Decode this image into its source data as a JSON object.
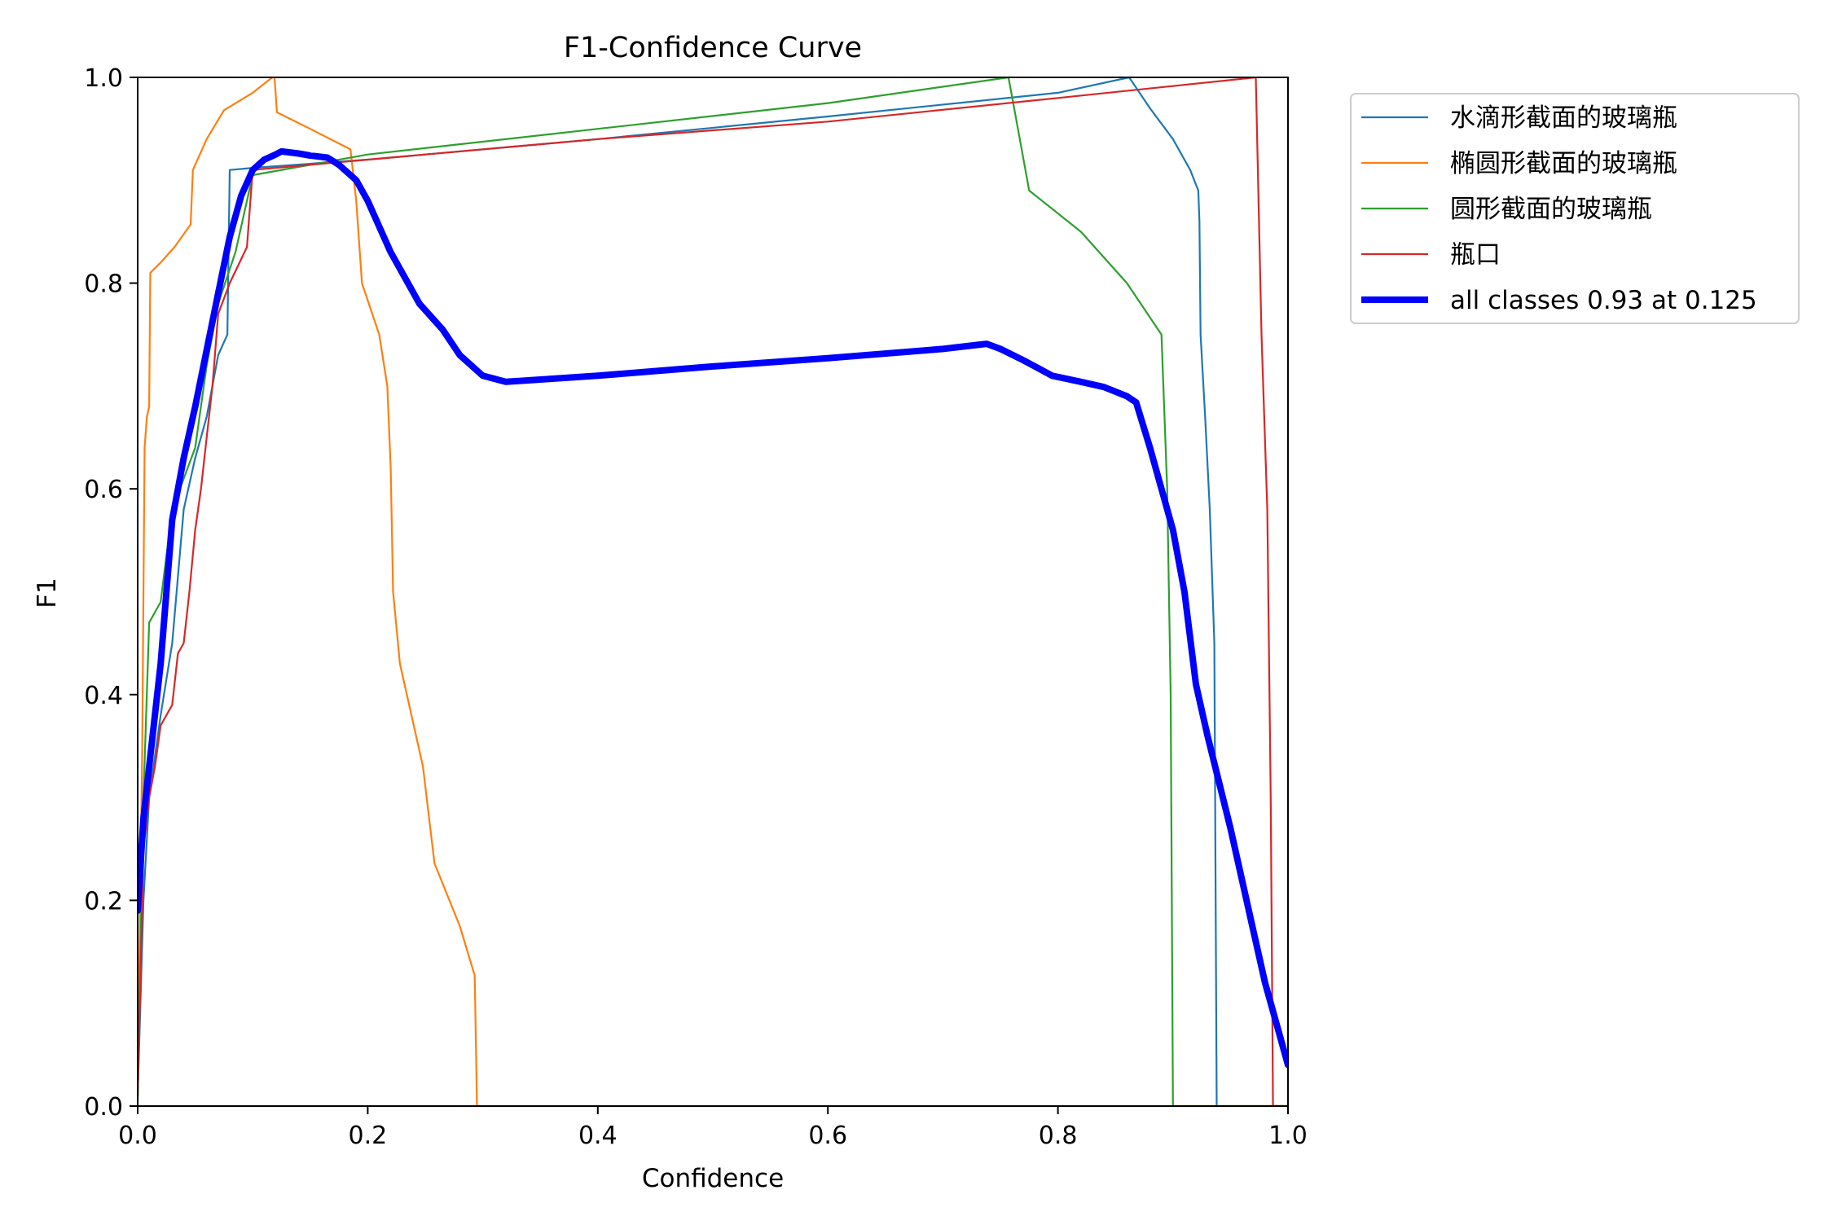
{
  "chart_data": {
    "type": "line",
    "title": "F1-Confidence Curve",
    "xlabel": "Confidence",
    "ylabel": "F1",
    "xlim": [
      0.0,
      1.0
    ],
    "ylim": [
      0.0,
      1.0
    ],
    "xticks": [
      "0.0",
      "0.2",
      "0.4",
      "0.6",
      "0.8",
      "1.0"
    ],
    "yticks": [
      "0.0",
      "0.2",
      "0.4",
      "0.6",
      "0.8",
      "1.0"
    ],
    "grid": false,
    "legend_position": "outside-right-top",
    "series": [
      {
        "name": "水滴形截面的玻璃瓶",
        "color": "#1f77b4",
        "points": [
          [
            0.0,
            0.01
          ],
          [
            0.005,
            0.2
          ],
          [
            0.01,
            0.3
          ],
          [
            0.02,
            0.38
          ],
          [
            0.03,
            0.45
          ],
          [
            0.04,
            0.58
          ],
          [
            0.05,
            0.63
          ],
          [
            0.06,
            0.67
          ],
          [
            0.07,
            0.73
          ],
          [
            0.078,
            0.75
          ],
          [
            0.08,
            0.91
          ],
          [
            0.1,
            0.912
          ],
          [
            0.2,
            0.92
          ],
          [
            0.4,
            0.94
          ],
          [
            0.6,
            0.962
          ],
          [
            0.8,
            0.985
          ],
          [
            0.862,
            1.0
          ],
          [
            0.88,
            0.97
          ],
          [
            0.9,
            0.94
          ],
          [
            0.915,
            0.91
          ],
          [
            0.922,
            0.89
          ],
          [
            0.923,
            0.86
          ],
          [
            0.924,
            0.75
          ],
          [
            0.928,
            0.67
          ],
          [
            0.932,
            0.58
          ],
          [
            0.936,
            0.45
          ],
          [
            0.938,
            0.0
          ],
          [
            1.0,
            0.0
          ]
        ]
      },
      {
        "name": "椭圆形截面的玻璃瓶",
        "color": "#ff7f0e",
        "points": [
          [
            0.0,
            0.01
          ],
          [
            0.004,
            0.35
          ],
          [
            0.006,
            0.64
          ],
          [
            0.008,
            0.67
          ],
          [
            0.01,
            0.68
          ],
          [
            0.011,
            0.81
          ],
          [
            0.02,
            0.82
          ],
          [
            0.032,
            0.835
          ],
          [
            0.046,
            0.857
          ],
          [
            0.048,
            0.91
          ],
          [
            0.06,
            0.94
          ],
          [
            0.075,
            0.968
          ],
          [
            0.1,
            0.985
          ],
          [
            0.117,
            1.0
          ],
          [
            0.119,
            1.0
          ],
          [
            0.121,
            0.966
          ],
          [
            0.15,
            0.95
          ],
          [
            0.185,
            0.93
          ],
          [
            0.19,
            0.88
          ],
          [
            0.195,
            0.8
          ],
          [
            0.21,
            0.75
          ],
          [
            0.217,
            0.7
          ],
          [
            0.22,
            0.62
          ],
          [
            0.222,
            0.5
          ],
          [
            0.228,
            0.43
          ],
          [
            0.248,
            0.33
          ],
          [
            0.258,
            0.236
          ],
          [
            0.28,
            0.175
          ],
          [
            0.293,
            0.127
          ],
          [
            0.295,
            0.0
          ],
          [
            1.0,
            0.0
          ]
        ]
      },
      {
        "name": "圆形截面的玻璃瓶",
        "color": "#2ca02c",
        "points": [
          [
            0.0,
            0.005
          ],
          [
            0.005,
            0.3
          ],
          [
            0.01,
            0.47
          ],
          [
            0.02,
            0.49
          ],
          [
            0.03,
            0.58
          ],
          [
            0.04,
            0.61
          ],
          [
            0.05,
            0.64
          ],
          [
            0.06,
            0.72
          ],
          [
            0.07,
            0.78
          ],
          [
            0.085,
            0.83
          ],
          [
            0.1,
            0.905
          ],
          [
            0.2,
            0.925
          ],
          [
            0.4,
            0.95
          ],
          [
            0.6,
            0.975
          ],
          [
            0.757,
            1.0
          ],
          [
            0.762,
            0.97
          ],
          [
            0.775,
            0.89
          ],
          [
            0.82,
            0.85
          ],
          [
            0.86,
            0.8
          ],
          [
            0.89,
            0.75
          ],
          [
            0.895,
            0.6
          ],
          [
            0.898,
            0.4
          ],
          [
            0.9,
            0.0
          ],
          [
            1.0,
            0.0
          ]
        ]
      },
      {
        "name": "瓶口",
        "color": "#d62728",
        "points": [
          [
            0.0,
            0.01
          ],
          [
            0.005,
            0.25
          ],
          [
            0.01,
            0.3
          ],
          [
            0.015,
            0.33
          ],
          [
            0.02,
            0.37
          ],
          [
            0.03,
            0.39
          ],
          [
            0.035,
            0.44
          ],
          [
            0.04,
            0.45
          ],
          [
            0.045,
            0.5
          ],
          [
            0.05,
            0.56
          ],
          [
            0.055,
            0.6
          ],
          [
            0.06,
            0.65
          ],
          [
            0.065,
            0.7
          ],
          [
            0.07,
            0.77
          ],
          [
            0.08,
            0.8
          ],
          [
            0.095,
            0.835
          ],
          [
            0.1,
            0.91
          ],
          [
            0.2,
            0.92
          ],
          [
            0.4,
            0.94
          ],
          [
            0.6,
            0.957
          ],
          [
            0.8,
            0.98
          ],
          [
            0.972,
            1.0
          ],
          [
            0.977,
            0.75
          ],
          [
            0.982,
            0.58
          ],
          [
            0.985,
            0.3
          ],
          [
            0.987,
            0.0
          ],
          [
            1.0,
            0.0
          ]
        ]
      },
      {
        "name": "all classes 0.93 at 0.125",
        "color": "#0000ff",
        "bold": true,
        "points": [
          [
            0.0,
            0.19
          ],
          [
            0.005,
            0.28
          ],
          [
            0.01,
            0.33
          ],
          [
            0.02,
            0.43
          ],
          [
            0.025,
            0.5
          ],
          [
            0.03,
            0.57
          ],
          [
            0.04,
            0.63
          ],
          [
            0.05,
            0.68
          ],
          [
            0.06,
            0.735
          ],
          [
            0.07,
            0.79
          ],
          [
            0.08,
            0.845
          ],
          [
            0.09,
            0.885
          ],
          [
            0.1,
            0.91
          ],
          [
            0.11,
            0.92
          ],
          [
            0.12,
            0.925
          ],
          [
            0.125,
            0.928
          ],
          [
            0.14,
            0.926
          ],
          [
            0.15,
            0.924
          ],
          [
            0.165,
            0.922
          ],
          [
            0.175,
            0.915
          ],
          [
            0.19,
            0.9
          ],
          [
            0.2,
            0.88
          ],
          [
            0.22,
            0.83
          ],
          [
            0.245,
            0.78
          ],
          [
            0.265,
            0.755
          ],
          [
            0.28,
            0.73
          ],
          [
            0.3,
            0.71
          ],
          [
            0.32,
            0.704
          ],
          [
            0.4,
            0.71
          ],
          [
            0.5,
            0.719
          ],
          [
            0.6,
            0.727
          ],
          [
            0.7,
            0.736
          ],
          [
            0.738,
            0.741
          ],
          [
            0.75,
            0.736
          ],
          [
            0.77,
            0.725
          ],
          [
            0.795,
            0.71
          ],
          [
            0.82,
            0.704
          ],
          [
            0.84,
            0.699
          ],
          [
            0.86,
            0.69
          ],
          [
            0.868,
            0.684
          ],
          [
            0.88,
            0.64
          ],
          [
            0.89,
            0.6
          ],
          [
            0.9,
            0.56
          ],
          [
            0.91,
            0.5
          ],
          [
            0.92,
            0.41
          ],
          [
            0.93,
            0.36
          ],
          [
            0.95,
            0.27
          ],
          [
            0.97,
            0.17
          ],
          [
            0.98,
            0.12
          ],
          [
            0.99,
            0.08
          ],
          [
            1.0,
            0.04
          ]
        ]
      }
    ]
  }
}
